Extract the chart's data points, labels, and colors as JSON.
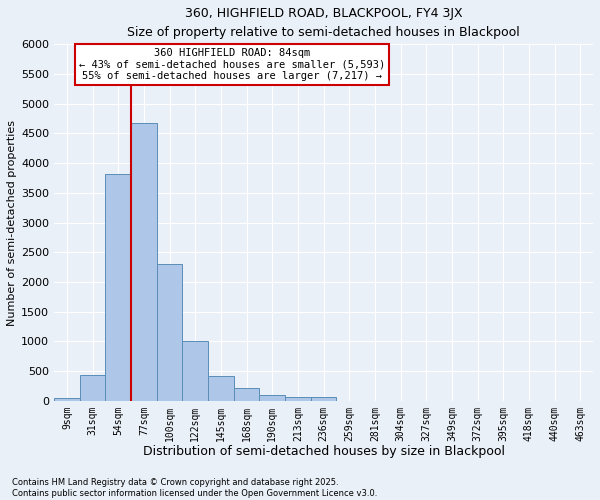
{
  "title1": "360, HIGHFIELD ROAD, BLACKPOOL, FY4 3JX",
  "title2": "Size of property relative to semi-detached houses in Blackpool",
  "xlabel": "Distribution of semi-detached houses by size in Blackpool",
  "ylabel": "Number of semi-detached properties",
  "footnote": "Contains HM Land Registry data © Crown copyright and database right 2025.\nContains public sector information licensed under the Open Government Licence v3.0.",
  "bin_labels": [
    "9sqm",
    "31sqm",
    "54sqm",
    "77sqm",
    "100sqm",
    "122sqm",
    "145sqm",
    "168sqm",
    "190sqm",
    "213sqm",
    "236sqm",
    "259sqm",
    "281sqm",
    "304sqm",
    "327sqm",
    "349sqm",
    "372sqm",
    "395sqm",
    "418sqm",
    "440sqm",
    "463sqm"
  ],
  "bar_values": [
    50,
    440,
    3820,
    4670,
    2300,
    1000,
    410,
    210,
    100,
    70,
    65,
    0,
    0,
    0,
    0,
    0,
    0,
    0,
    0,
    0,
    0
  ],
  "ylim": [
    0,
    6000
  ],
  "yticks": [
    0,
    500,
    1000,
    1500,
    2000,
    2500,
    3000,
    3500,
    4000,
    4500,
    5000,
    5500,
    6000
  ],
  "bar_color": "#aec6e8",
  "bar_edge_color": "#5b8db8",
  "bg_color": "#eaf0f8",
  "grid_color": "#ffffff",
  "vline_x": 3,
  "vline_color": "#cc0000",
  "annotation_title": "360 HIGHFIELD ROAD: 84sqm",
  "annotation_line1": "← 43% of semi-detached houses are smaller (5,593)",
  "annotation_line2": "55% of semi-detached houses are larger (7,217) →",
  "annotation_box_color": "#cc0000",
  "annotation_box_fill": "white"
}
